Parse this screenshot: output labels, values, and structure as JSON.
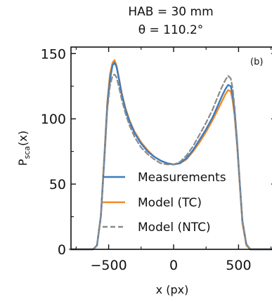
{
  "chart_data": {
    "type": "line",
    "title": "HAB = 30 mm",
    "subtitle": "θ = 110.2°",
    "panel_label": "(b)",
    "xlabel": "x (px)",
    "ylabel_main": "P",
    "ylabel_sub": "sca",
    "ylabel_tail": "(x)",
    "xlim": [
      -790,
      790
    ],
    "ylim": [
      0,
      155
    ],
    "xticks": [
      -500,
      0,
      500
    ],
    "xtick_labels": [
      "−500",
      "0",
      "500"
    ],
    "yticks": [
      0,
      50,
      100,
      150
    ],
    "ytick_labels": [
      "0",
      "50",
      "100",
      "150"
    ],
    "grid": false,
    "legend_position": "lower-center",
    "series": [
      {
        "name": "Measurements",
        "color": "#3a7dc3",
        "style": "solid",
        "x": [
          -800,
          -700,
          -620,
          -590,
          -560,
          -530,
          -510,
          -490,
          -470,
          -455,
          -440,
          -420,
          -400,
          -370,
          -340,
          -300,
          -250,
          -200,
          -150,
          -100,
          -50,
          0,
          50,
          100,
          150,
          200,
          250,
          300,
          340,
          370,
          400,
          420,
          440,
          455,
          470,
          490,
          510,
          530,
          560,
          590,
          620,
          700,
          790
        ],
        "y": [
          0,
          0,
          0,
          3,
          25,
          75,
          110,
          130,
          141,
          143,
          140,
          130,
          119,
          107,
          98,
          89,
          81,
          75,
          71,
          68,
          66,
          65,
          66,
          70,
          76,
          84,
          92,
          101,
          110,
          117,
          123,
          126,
          125,
          118,
          105,
          80,
          50,
          22,
          4,
          0,
          0,
          0,
          0
        ]
      },
      {
        "name": "Model (TC)",
        "color": "#f5891f",
        "style": "solid",
        "x": [
          -800,
          -700,
          -620,
          -590,
          -560,
          -530,
          -510,
          -490,
          -470,
          -455,
          -440,
          -420,
          -400,
          -370,
          -340,
          -300,
          -250,
          -200,
          -150,
          -100,
          -50,
          0,
          50,
          100,
          150,
          200,
          250,
          300,
          340,
          370,
          400,
          420,
          440,
          455,
          470,
          490,
          510,
          530,
          560,
          590,
          620,
          700,
          790
        ],
        "y": [
          0,
          0,
          0,
          3,
          26,
          78,
          113,
          134,
          143,
          145,
          141,
          131,
          120,
          108,
          99,
          90,
          82,
          76,
          71,
          68,
          66,
          65,
          66,
          69,
          75,
          82,
          90,
          99,
          107,
          113,
          119,
          122,
          121,
          114,
          102,
          78,
          48,
          20,
          3,
          0,
          0,
          0,
          0
        ]
      },
      {
        "name": "Model (NTC)",
        "color": "#8a8a8a",
        "style": "dashed",
        "x": [
          -800,
          -700,
          -620,
          -590,
          -560,
          -530,
          -510,
          -490,
          -470,
          -455,
          -440,
          -420,
          -400,
          -370,
          -340,
          -300,
          -250,
          -200,
          -150,
          -100,
          -50,
          0,
          50,
          100,
          150,
          200,
          250,
          300,
          340,
          370,
          400,
          420,
          440,
          455,
          470,
          490,
          510,
          530,
          560,
          590,
          620,
          700,
          790
        ],
        "y": [
          0,
          0,
          0,
          3,
          25,
          74,
          107,
          125,
          133,
          134,
          132,
          124,
          115,
          104,
          95,
          86,
          78,
          73,
          69,
          66,
          65,
          65,
          67,
          72,
          79,
          88,
          97,
          107,
          117,
          124,
          130,
          133,
          131,
          123,
          108,
          82,
          50,
          22,
          4,
          0,
          0,
          0,
          0
        ]
      }
    ]
  }
}
